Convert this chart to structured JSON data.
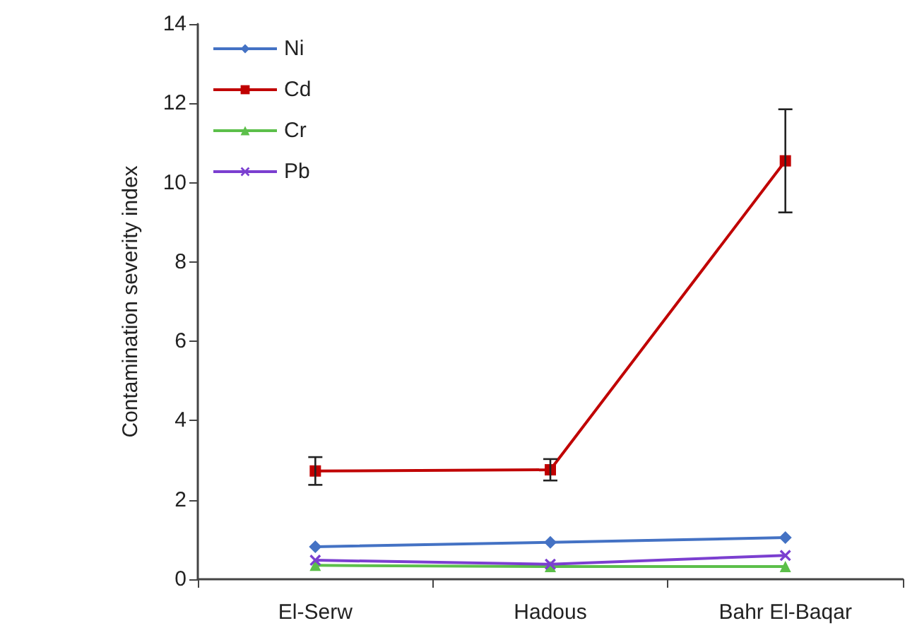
{
  "chart_data": {
    "type": "line",
    "ylabel": "Contamination severity index",
    "categories": [
      "El-Serw",
      "Hadous",
      "Bahr El-Baqar"
    ],
    "series": [
      {
        "name": "Ni",
        "color": "#4472c4",
        "marker": "diamond",
        "values": [
          0.82,
          0.93,
          1.05
        ]
      },
      {
        "name": "Cd",
        "color": "#c00000",
        "marker": "square",
        "values": [
          2.73,
          2.76,
          10.55
        ],
        "errors": [
          0.35,
          0.27,
          1.3
        ]
      },
      {
        "name": "Cr",
        "color": "#5cbf4a",
        "marker": "triangle",
        "values": [
          0.35,
          0.32,
          0.32
        ]
      },
      {
        "name": "Pb",
        "color": "#7b3fd0",
        "marker": "cross",
        "values": [
          0.48,
          0.38,
          0.6
        ]
      }
    ],
    "ylim": [
      0,
      14
    ],
    "yticks": [
      0,
      2,
      4,
      6,
      8,
      10,
      12,
      14
    ],
    "grid": false,
    "legend": "top left"
  }
}
